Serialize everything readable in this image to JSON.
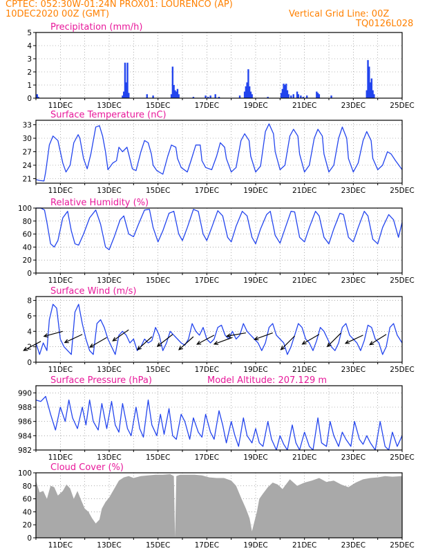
{
  "header": {
    "line1": "CPTEC:   052:30W-01:24N   PROX01: LOURENCO (AP)",
    "line2_left": "10DEC2020 00Z (GMT)",
    "line2_right": "Vertical Grid Line: 00Z",
    "line3_right": "TQ0126L028",
    "color": "#ff8000"
  },
  "colors": {
    "title": "#e8189a",
    "line": "#2244ee",
    "bar": "#2244ee",
    "cloud": "#a9a9a9",
    "wind_arrow": "#000000"
  },
  "x_ticks": [
    "11DEC",
    "13DEC",
    "15DEC",
    "17DEC",
    "19DEC",
    "21DEC",
    "23DEC",
    "25DEC"
  ],
  "chart_data": [
    {
      "type": "bar",
      "title": "Precipitation (mm/h)",
      "ylim": [
        0,
        5
      ],
      "yticks": [
        "0",
        "1",
        "2",
        "3",
        "4",
        "5"
      ],
      "grid": true,
      "x_range_days": [
        10,
        25
      ],
      "x": [
        10.05,
        10.1,
        13.55,
        13.6,
        13.65,
        13.7,
        13.75,
        13.8,
        14.55,
        14.8,
        15.55,
        15.6,
        15.65,
        15.7,
        15.75,
        15.8,
        15.85,
        16.45,
        16.95,
        17.05,
        17.15,
        17.35,
        17.5,
        18.35,
        18.55,
        18.6,
        18.65,
        18.7,
        18.75,
        18.8,
        18.85,
        19.5,
        20.05,
        20.1,
        20.15,
        20.2,
        20.25,
        20.3,
        20.35,
        20.45,
        20.55,
        20.7,
        20.75,
        20.85,
        20.95,
        21.1,
        21.5,
        21.55,
        21.6,
        22.1,
        23.55,
        23.6,
        23.65,
        23.7,
        23.75,
        23.8,
        23.85
      ],
      "values": [
        0.3,
        0.1,
        0.2,
        0.5,
        2.7,
        1.2,
        2.7,
        0.4,
        0.3,
        0.2,
        0.3,
        2.4,
        1.0,
        0.6,
        0.5,
        0.7,
        0.3,
        0.1,
        0.2,
        0.1,
        0.2,
        0.3,
        0.1,
        0.2,
        0.5,
        0.9,
        1.2,
        2.2,
        0.9,
        0.5,
        0.3,
        0.1,
        0.4,
        0.7,
        1.1,
        1.0,
        1.1,
        0.6,
        0.3,
        0.2,
        0.3,
        0.5,
        0.3,
        0.2,
        0.1,
        0.2,
        0.5,
        0.4,
        0.3,
        0.2,
        0.6,
        2.9,
        2.4,
        1.2,
        1.5,
        0.6,
        0.3
      ]
    },
    {
      "type": "line",
      "title": "Surface Temperature (nC)",
      "ylim": [
        20,
        34
      ],
      "yticks": [
        "21",
        "24",
        "27",
        "30",
        "33"
      ],
      "grid": true,
      "x": [
        10.0,
        10.15,
        10.33,
        10.4,
        10.55,
        10.7,
        10.9,
        11.1,
        11.23,
        11.4,
        11.55,
        11.73,
        11.8,
        11.95,
        12.1,
        12.25,
        12.45,
        12.6,
        12.73,
        12.85,
        12.95,
        13.15,
        13.3,
        13.4,
        13.55,
        13.73,
        13.8,
        13.95,
        14.1,
        14.3,
        14.45,
        14.6,
        14.73,
        14.8,
        14.95,
        15.2,
        15.4,
        15.55,
        15.73,
        15.8,
        15.95,
        16.2,
        16.35,
        16.55,
        16.73,
        16.8,
        16.95,
        17.2,
        17.4,
        17.55,
        17.73,
        17.8,
        18.0,
        18.2,
        18.4,
        18.55,
        18.73,
        18.8,
        19.0,
        19.2,
        19.4,
        19.55,
        19.73,
        19.8,
        20.0,
        20.2,
        20.4,
        20.55,
        20.73,
        20.8,
        21.0,
        21.2,
        21.4,
        21.55,
        21.73,
        21.8,
        22.0,
        22.2,
        22.4,
        22.55,
        22.73,
        22.8,
        23.0,
        23.2,
        23.4,
        23.55,
        23.73,
        23.8,
        24.0,
        24.2,
        24.4,
        24.55,
        24.73,
        24.8,
        25.0
      ],
      "values": [
        20.8,
        20.6,
        20.5,
        22.5,
        28.5,
        30.5,
        29.5,
        24.5,
        22.5,
        24.0,
        29.0,
        30.8,
        30.0,
        25.5,
        23.2,
        26.5,
        32.5,
        32.8,
        30.5,
        27.0,
        23.0,
        24.5,
        25.0,
        28.0,
        27.0,
        28.0,
        26.5,
        23.2,
        22.8,
        27.0,
        29.5,
        29.0,
        26.5,
        24.0,
        22.8,
        22.0,
        26.0,
        28.5,
        28.0,
        25.5,
        23.5,
        22.5,
        25.0,
        28.5,
        28.5,
        25.0,
        23.5,
        23.0,
        26.0,
        29.0,
        28.0,
        25.5,
        22.5,
        23.5,
        29.5,
        31.0,
        29.5,
        26.0,
        22.5,
        23.8,
        31.5,
        33.2,
        31.0,
        27.0,
        23.0,
        24.0,
        30.5,
        32.0,
        30.5,
        26.5,
        22.5,
        24.0,
        30.0,
        32.0,
        30.5,
        26.5,
        22.5,
        24.0,
        30.0,
        32.5,
        30.0,
        25.5,
        22.5,
        24.5,
        29.5,
        31.5,
        29.5,
        25.5,
        23.0,
        24.0,
        27.0,
        26.5,
        25.0,
        24.5,
        23.0
      ]
    },
    {
      "type": "line",
      "title": "Relative Humidity (%)",
      "ylim": [
        0,
        100
      ],
      "yticks": [
        "0",
        "20",
        "40",
        "60",
        "80",
        "100"
      ],
      "grid": true,
      "x": [
        10.0,
        10.2,
        10.35,
        10.45,
        10.6,
        10.75,
        10.9,
        11.1,
        11.3,
        11.45,
        11.6,
        11.75,
        11.95,
        12.2,
        12.45,
        12.65,
        12.85,
        13.0,
        13.2,
        13.45,
        13.6,
        13.8,
        14.0,
        14.2,
        14.45,
        14.65,
        14.8,
        15.0,
        15.2,
        15.45,
        15.65,
        15.85,
        16.0,
        16.2,
        16.45,
        16.65,
        16.85,
        17.0,
        17.2,
        17.45,
        17.65,
        17.85,
        18.0,
        18.2,
        18.45,
        18.65,
        18.85,
        19.0,
        19.2,
        19.45,
        19.6,
        19.8,
        20.0,
        20.2,
        20.45,
        20.6,
        20.8,
        21.0,
        21.2,
        21.45,
        21.6,
        21.8,
        22.0,
        22.2,
        22.45,
        22.6,
        22.8,
        23.0,
        23.2,
        23.45,
        23.6,
        23.8,
        24.0,
        24.2,
        24.45,
        24.65,
        24.85,
        25.0
      ],
      "values": [
        100,
        100,
        97,
        78,
        45,
        40,
        50,
        85,
        95,
        65,
        45,
        43,
        60,
        85,
        97,
        75,
        40,
        36,
        55,
        82,
        88,
        60,
        56,
        75,
        97,
        98,
        70,
        48,
        65,
        92,
        95,
        60,
        50,
        70,
        98,
        95,
        60,
        50,
        70,
        96,
        88,
        55,
        48,
        72,
        95,
        88,
        55,
        45,
        68,
        90,
        95,
        58,
        46,
        68,
        95,
        94,
        55,
        48,
        70,
        95,
        88,
        55,
        45,
        68,
        92,
        90,
        55,
        48,
        70,
        95,
        88,
        52,
        45,
        70,
        90,
        82,
        55,
        78
      ]
    },
    {
      "type": "line",
      "title": "Surface Wind (m/s)",
      "ylim": [
        0,
        8.5
      ],
      "yticks": [
        "0",
        "2",
        "4",
        "6",
        "8"
      ],
      "grid": true,
      "x": [
        10.0,
        10.15,
        10.3,
        10.45,
        10.55,
        10.7,
        10.85,
        11.0,
        11.15,
        11.3,
        11.45,
        11.6,
        11.75,
        11.9,
        12.05,
        12.2,
        12.35,
        12.5,
        12.65,
        12.8,
        12.95,
        13.1,
        13.25,
        13.4,
        13.55,
        13.7,
        13.85,
        14.0,
        14.15,
        14.3,
        14.45,
        14.6,
        14.75,
        14.9,
        15.05,
        15.2,
        15.35,
        15.5,
        15.65,
        15.8,
        15.95,
        16.1,
        16.25,
        16.4,
        16.55,
        16.7,
        16.85,
        17.0,
        17.15,
        17.3,
        17.45,
        17.6,
        17.75,
        17.9,
        18.05,
        18.2,
        18.35,
        18.5,
        18.65,
        18.8,
        18.95,
        19.1,
        19.25,
        19.4,
        19.55,
        19.7,
        19.85,
        20.0,
        20.15,
        20.3,
        20.45,
        20.6,
        20.75,
        20.9,
        21.05,
        21.2,
        21.35,
        21.5,
        21.65,
        21.8,
        21.95,
        22.1,
        22.25,
        22.4,
        22.55,
        22.7,
        22.85,
        23.0,
        23.15,
        23.3,
        23.45,
        23.6,
        23.75,
        23.9,
        24.05,
        24.2,
        24.35,
        24.5,
        24.65,
        24.8,
        25.0
      ],
      "values": [
        2.5,
        1.0,
        2.5,
        1.5,
        5.5,
        7.5,
        7.0,
        3.0,
        2.0,
        1.5,
        1.0,
        6.5,
        7.5,
        5.0,
        3.0,
        1.5,
        1.0,
        5.0,
        5.5,
        4.5,
        3.0,
        2.0,
        1.0,
        3.5,
        4.0,
        3.5,
        2.5,
        3.0,
        1.5,
        2.0,
        3.0,
        2.5,
        2.8,
        4.5,
        3.5,
        1.5,
        2.5,
        4.0,
        3.5,
        3.0,
        2.5,
        2.2,
        3.0,
        5.0,
        4.0,
        3.5,
        4.5,
        3.0,
        2.5,
        3.0,
        4.5,
        4.8,
        3.5,
        3.0,
        4.0,
        3.0,
        3.5,
        5.0,
        4.0,
        3.5,
        3.0,
        2.5,
        1.5,
        2.5,
        4.5,
        5.0,
        3.5,
        3.0,
        2.5,
        1.0,
        2.0,
        3.5,
        5.0,
        4.5,
        3.0,
        2.5,
        1.5,
        2.8,
        4.5,
        4.0,
        3.0,
        2.0,
        1.5,
        2.5,
        4.5,
        5.0,
        3.5,
        3.0,
        2.5,
        1.5,
        2.8,
        4.8,
        4.5,
        3.0,
        2.5,
        1.0,
        2.0,
        4.5,
        5.0,
        3.5,
        2.5
      ],
      "arrows": [
        {
          "x": 10.2,
          "speed": 2.7,
          "dir_deg": 208
        },
        {
          "x": 11.1,
          "speed": 4.0,
          "dir_deg": 195
        },
        {
          "x": 11.9,
          "speed": 3.6,
          "dir_deg": 205
        },
        {
          "x": 12.9,
          "speed": 3.2,
          "dir_deg": 210
        },
        {
          "x": 13.8,
          "speed": 4.2,
          "dir_deg": 215
        },
        {
          "x": 14.75,
          "speed": 3.3,
          "dir_deg": 222
        },
        {
          "x": 15.6,
          "speed": 3.6,
          "dir_deg": 218
        },
        {
          "x": 16.45,
          "speed": 3.3,
          "dir_deg": 222
        },
        {
          "x": 17.3,
          "speed": 3.5,
          "dir_deg": 208
        },
        {
          "x": 18.05,
          "speed": 3.2,
          "dir_deg": 200
        },
        {
          "x": 18.6,
          "speed": 3.8,
          "dir_deg": 190
        },
        {
          "x": 19.7,
          "speed": 3.8,
          "dir_deg": 200
        },
        {
          "x": 20.6,
          "speed": 3.4,
          "dir_deg": 225
        },
        {
          "x": 21.6,
          "speed": 3.6,
          "dir_deg": 210
        },
        {
          "x": 22.5,
          "speed": 3.8,
          "dir_deg": 225
        },
        {
          "x": 23.4,
          "speed": 3.5,
          "dir_deg": 205
        },
        {
          "x": 24.35,
          "speed": 3.6,
          "dir_deg": 212
        }
      ]
    },
    {
      "type": "line",
      "title": "Surface Pressure (hPa)",
      "subtitle": "Model Altitude: 207.129 m",
      "ylim": [
        982,
        991
      ],
      "yticks": [
        "982",
        "984",
        "986",
        "988",
        "990"
      ],
      "grid": true,
      "x": [
        10.0,
        10.2,
        10.4,
        10.6,
        10.8,
        11.0,
        11.2,
        11.35,
        11.5,
        11.7,
        11.9,
        12.05,
        12.2,
        12.35,
        12.55,
        12.7,
        12.9,
        13.1,
        13.25,
        13.4,
        13.55,
        13.75,
        13.9,
        14.1,
        14.25,
        14.4,
        14.6,
        14.75,
        14.95,
        15.1,
        15.25,
        15.45,
        15.6,
        15.75,
        15.95,
        16.1,
        16.3,
        16.45,
        16.65,
        16.8,
        16.95,
        17.15,
        17.3,
        17.5,
        17.65,
        17.8,
        18.0,
        18.15,
        18.3,
        18.5,
        18.65,
        18.85,
        19.0,
        19.15,
        19.3,
        19.5,
        19.65,
        19.85,
        20.0,
        20.15,
        20.3,
        20.5,
        20.65,
        20.8,
        21.0,
        21.2,
        21.35,
        21.55,
        21.7,
        21.9,
        22.05,
        22.2,
        22.4,
        22.55,
        22.7,
        22.9,
        23.05,
        23.25,
        23.4,
        23.55,
        23.7,
        23.9,
        24.1,
        24.3,
        24.45,
        24.6,
        24.8,
        25.0
      ],
      "values": [
        989.0,
        988.8,
        989.5,
        987.0,
        984.8,
        988.0,
        986.0,
        989.0,
        986.5,
        985.0,
        988.0,
        985.5,
        989.0,
        986.0,
        984.8,
        988.5,
        985.0,
        988.8,
        985.5,
        984.5,
        988.5,
        985.0,
        984.0,
        988.0,
        985.0,
        983.8,
        989.0,
        985.5,
        984.0,
        987.0,
        984.2,
        987.8,
        984.0,
        983.5,
        987.0,
        986.0,
        983.5,
        986.5,
        984.5,
        983.8,
        987.0,
        984.5,
        983.5,
        987.5,
        985.5,
        983.0,
        986.0,
        984.0,
        982.5,
        986.5,
        984.0,
        983.0,
        985.0,
        983.0,
        982.5,
        986.0,
        983.5,
        982.0,
        984.0,
        982.8,
        982.0,
        985.5,
        983.0,
        982.0,
        984.5,
        982.5,
        982.0,
        986.5,
        983.0,
        982.5,
        986.0,
        984.0,
        982.5,
        984.5,
        983.5,
        982.5,
        986.0,
        983.5,
        982.8,
        984.0,
        983.0,
        982.0,
        986.0,
        982.5,
        982.0,
        984.5,
        982.5,
        984.0
      ]
    },
    {
      "type": "area",
      "title": "Cloud Cover (%)",
      "ylim": [
        0,
        100
      ],
      "yticks": [
        "0",
        "20",
        "40",
        "60",
        "80",
        "100"
      ],
      "grid": true,
      "x": [
        10.0,
        10.15,
        10.3,
        10.45,
        10.6,
        10.75,
        10.9,
        11.1,
        11.25,
        11.4,
        11.55,
        11.7,
        11.85,
        12.0,
        12.15,
        12.3,
        12.45,
        12.6,
        12.7,
        12.85,
        13.0,
        13.2,
        13.4,
        13.6,
        13.8,
        14.0,
        14.3,
        14.6,
        14.9,
        15.2,
        15.5,
        15.65,
        15.7,
        15.75,
        15.9,
        16.2,
        16.5,
        16.8,
        17.1,
        17.4,
        17.7,
        18.0,
        18.2,
        18.4,
        18.6,
        18.75,
        18.85,
        18.95,
        19.05,
        19.15,
        19.3,
        19.5,
        19.7,
        19.9,
        20.1,
        20.4,
        20.7,
        21.0,
        21.3,
        21.6,
        21.9,
        22.2,
        22.5,
        22.8,
        23.1,
        23.4,
        23.7,
        24.0,
        24.3,
        24.6,
        25.0
      ],
      "values": [
        88,
        70,
        72,
        60,
        80,
        78,
        65,
        72,
        82,
        76,
        60,
        72,
        58,
        45,
        40,
        30,
        22,
        28,
        45,
        55,
        62,
        75,
        88,
        93,
        95,
        92,
        95,
        96,
        97,
        97,
        98,
        95,
        0,
        95,
        97,
        97,
        97,
        96,
        93,
        92,
        92,
        88,
        80,
        62,
        45,
        30,
        10,
        25,
        40,
        60,
        68,
        78,
        85,
        82,
        75,
        90,
        80,
        85,
        88,
        92,
        86,
        88,
        82,
        78,
        85,
        90,
        92,
        93,
        95,
        94,
        95
      ]
    }
  ]
}
